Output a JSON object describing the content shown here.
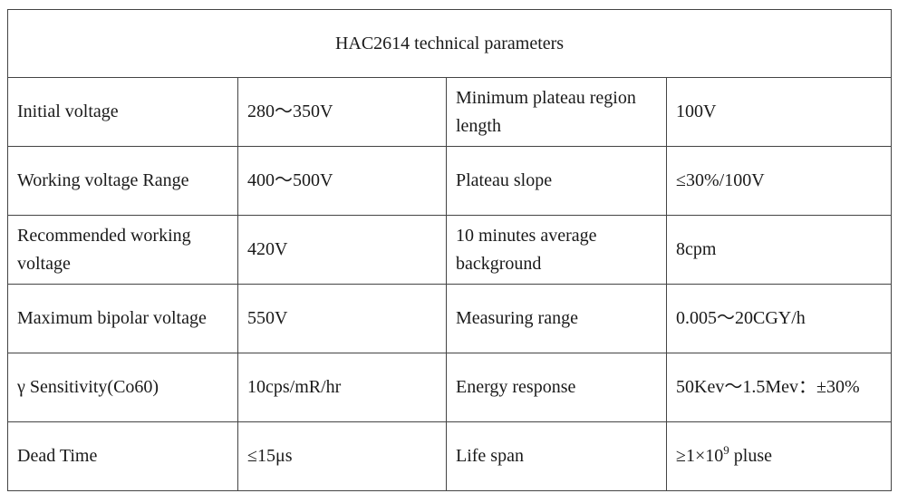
{
  "table": {
    "title": "HAC2614 technical parameters",
    "rows": [
      {
        "label1": "Initial voltage",
        "value1": "280～350V",
        "label2": "Minimum plateau region length",
        "value2": "100V"
      },
      {
        "label1": "Working voltage Range",
        "value1": "400～500V",
        "label2": "Plateau slope",
        "value2": "≤30%/100V"
      },
      {
        "label1": "Recommended working voltage",
        "value1": "420V",
        "label2": "10 minutes average background",
        "value2": "8cpm"
      },
      {
        "label1": "Maximum bipolar voltage",
        "value1": "550V",
        "label2": "Measuring range",
        "value2": "0.005～20CGY/h"
      },
      {
        "label1": "γ Sensitivity(Co60)",
        "value1": "10cps/mR/hr",
        "label2": "Energy response",
        "value2": "50Kev～1.5Mev：±30%"
      },
      {
        "label1": "Dead Time",
        "value1": "≤15μs",
        "label2": "Life span"
      }
    ],
    "life_span_value": {
      "base": "≥1×10",
      "exponent": "9",
      "unit": " pluse"
    }
  }
}
